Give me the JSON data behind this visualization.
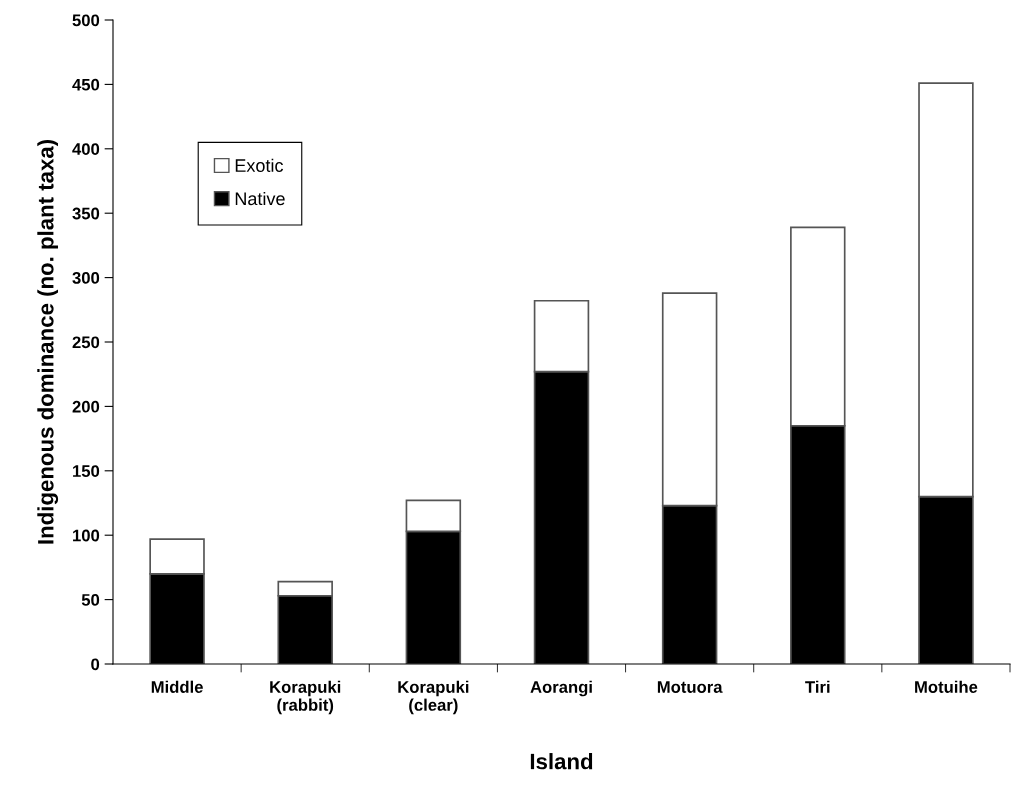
{
  "chart_data": {
    "type": "bar",
    "stacked": true,
    "xlabel": "Island",
    "ylabel": "Indigenous dominance (no. plant taxa)",
    "categories": [
      "Middle",
      "Korapuki\n(rabbit)",
      "Korapuki\n(clear)",
      "Aorangi",
      "Motuora",
      "Tiri",
      "Motuihe"
    ],
    "series": [
      {
        "name": "Native",
        "color": "#000000",
        "values": [
          70,
          53,
          103,
          227,
          123,
          185,
          130
        ]
      },
      {
        "name": "Exotic",
        "color": "#ffffff",
        "values": [
          27,
          11,
          24,
          55,
          165,
          154,
          321
        ]
      }
    ],
    "ylim": [
      0,
      500
    ],
    "yticks": [
      0,
      50,
      100,
      150,
      200,
      250,
      300,
      350,
      400,
      450,
      500
    ],
    "legend": "top left",
    "grid": false
  }
}
